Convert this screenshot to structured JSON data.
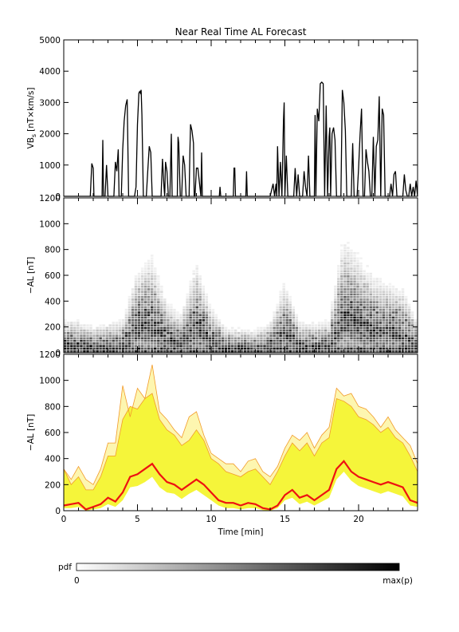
{
  "chart_data": [
    {
      "type": "line",
      "title": "Near Real Time AL Forecast",
      "ylabel_main": "VB",
      "ylabel_sub": "s",
      "ylabel_units": "[nT×km/s]",
      "ylim": [
        0,
        5000
      ],
      "xlim": [
        0,
        24
      ],
      "yticks": [
        "0",
        "1000",
        "2000",
        "3000",
        "4000",
        "5000"
      ],
      "x": [
        0,
        1.8,
        1.9,
        2.0,
        2.05,
        2.3,
        2.6,
        2.65,
        2.7,
        2.8,
        2.9,
        3.0,
        3.4,
        3.5,
        3.6,
        3.7,
        3.75,
        3.8,
        3.9,
        4.0,
        4.1,
        4.2,
        4.3,
        4.4,
        4.5,
        4.6,
        4.8,
        4.9,
        5.0,
        5.1,
        5.15,
        5.2,
        5.25,
        5.3,
        5.4,
        5.5,
        5.6,
        5.7,
        5.8,
        5.85,
        5.9,
        6.0,
        6.1,
        6.2,
        6.3,
        6.5,
        6.6,
        6.7,
        6.8,
        6.85,
        6.9,
        7.0,
        7.1,
        7.2,
        7.3,
        7.35,
        7.4,
        7.5,
        7.7,
        7.75,
        7.8,
        7.9,
        8.0,
        8.1,
        8.2,
        8.3,
        8.5,
        8.55,
        8.6,
        8.7,
        8.8,
        8.85,
        8.9,
        9.0,
        9.1,
        9.3,
        9.35,
        9.4,
        9.5,
        10.0,
        10.55,
        10.6,
        10.65,
        10.7,
        11.5,
        11.55,
        11.6,
        11.65,
        11.7,
        12.35,
        12.4,
        12.45,
        12.5,
        14.0,
        14.2,
        14.3,
        14.4,
        14.45,
        14.5,
        14.6,
        14.7,
        14.8,
        14.9,
        14.95,
        15.0,
        15.1,
        15.2,
        15.3,
        15.4,
        15.6,
        15.7,
        15.8,
        15.9,
        16.0,
        16.1,
        16.2,
        16.3,
        16.4,
        16.5,
        16.6,
        16.7,
        16.8,
        16.9,
        17.0,
        17.05,
        17.1,
        17.2,
        17.3,
        17.4,
        17.5,
        17.6,
        17.7,
        17.8,
        17.9,
        18.0,
        18.05,
        18.1,
        18.2,
        18.3,
        18.4,
        18.5,
        18.6,
        18.7,
        18.8,
        18.9,
        19.0,
        19.1,
        19.2,
        19.3,
        19.4,
        19.5,
        19.6,
        19.7,
        19.8,
        19.9,
        20.0,
        20.1,
        20.2,
        20.3,
        20.4,
        20.5,
        20.6,
        20.7,
        20.8,
        20.9,
        21.0,
        21.1,
        21.2,
        21.3,
        21.4,
        21.5,
        21.6,
        21.7,
        21.8,
        21.9,
        22.0,
        22.1,
        22.2,
        22.3,
        22.4,
        22.5,
        22.6,
        22.7,
        22.8,
        22.9,
        23.0,
        23.1,
        23.2,
        23.3,
        23.4,
        23.5,
        23.6,
        23.7,
        23.8,
        23.9,
        24.0
      ],
      "values": [
        0,
        0,
        1050,
        900,
        0,
        0,
        0,
        1800,
        0,
        0,
        1000,
        0,
        0,
        1100,
        800,
        1500,
        0,
        0,
        0,
        1500,
        2400,
        2900,
        3100,
        0,
        0,
        0,
        0,
        300,
        2300,
        3300,
        3350,
        3300,
        3400,
        2600,
        0,
        0,
        0,
        800,
        1600,
        1500,
        1400,
        0,
        0,
        0,
        0,
        0,
        0,
        1200,
        300,
        0,
        1100,
        800,
        0,
        0,
        2000,
        0,
        0,
        0,
        0,
        1900,
        1700,
        0,
        0,
        1300,
        1000,
        0,
        0,
        1300,
        2300,
        2100,
        1700,
        0,
        0,
        900,
        900,
        0,
        1400,
        0,
        0,
        0,
        0,
        300,
        0,
        0,
        0,
        900,
        900,
        0,
        0,
        0,
        800,
        0,
        0,
        0,
        400,
        0,
        400,
        0,
        1600,
        0,
        1100,
        0,
        2400,
        3000,
        0,
        1300,
        0,
        0,
        0,
        0,
        900,
        0,
        700,
        0,
        0,
        0,
        800,
        300,
        0,
        1300,
        0,
        0,
        0,
        0,
        2600,
        0,
        2800,
        2400,
        3600,
        3650,
        3600,
        0,
        2900,
        0,
        1900,
        2200,
        0,
        2000,
        2200,
        1800,
        0,
        0,
        0,
        0,
        3400,
        3000,
        2100,
        0,
        0,
        0,
        0,
        1700,
        0,
        0,
        0,
        900,
        2000,
        2800,
        0,
        0,
        1500,
        1100,
        800,
        0,
        0,
        1900,
        0,
        1600,
        1800,
        3200,
        0,
        2800,
        2600,
        0,
        0,
        0,
        0,
        400,
        0,
        700,
        800,
        0,
        0,
        0,
        0,
        0,
        700,
        200,
        0,
        0,
        400,
        0,
        300,
        0,
        500,
        0
      ]
    },
    {
      "type": "heatmap",
      "ylabel": "−AL [nT]",
      "ylim": [
        0,
        1200
      ],
      "xlim": [
        0,
        24
      ],
      "yticks": [
        "0",
        "200",
        "400",
        "600",
        "800",
        "1000",
        "1200"
      ],
      "description_of_shading": "pdf of -AL per time bin, gray scale 0 to max(p)",
      "density_centers_x": [
        0,
        1,
        2,
        3,
        4,
        5,
        6,
        7,
        8,
        9,
        10,
        11,
        12,
        13,
        14,
        15,
        16,
        17,
        18,
        19,
        20,
        21,
        22,
        23,
        24
      ],
      "density_centers_y": [
        60,
        60,
        40,
        50,
        60,
        220,
        260,
        120,
        80,
        240,
        100,
        40,
        30,
        30,
        50,
        180,
        60,
        50,
        60,
        320,
        260,
        200,
        180,
        160,
        60
      ]
    },
    {
      "type": "area",
      "ylabel": "−AL [nT]",
      "xlabel": "Time [min]",
      "ylim": [
        0,
        1200
      ],
      "xlim": [
        0,
        24
      ],
      "yticks": [
        "0",
        "200",
        "400",
        "600",
        "800",
        "1000",
        "1200"
      ],
      "xticks": [
        "0",
        "5",
        "10",
        "15",
        "20"
      ],
      "xtick_values": [
        0,
        5,
        10,
        15,
        20
      ],
      "x": [
        0,
        0.5,
        1,
        1.5,
        2,
        2.5,
        3,
        3.5,
        4,
        4.5,
        5,
        5.5,
        6,
        6.5,
        7,
        7.5,
        8,
        8.5,
        9,
        9.5,
        10,
        10.5,
        11,
        11.5,
        12,
        12.5,
        13,
        13.5,
        14,
        14.5,
        15,
        15.5,
        16,
        16.5,
        17,
        17.5,
        18,
        18.5,
        19,
        19.5,
        20,
        20.5,
        21,
        21.5,
        22,
        22.5,
        23,
        23.5,
        24
      ],
      "median": [
        40,
        50,
        60,
        10,
        30,
        50,
        100,
        70,
        140,
        260,
        280,
        320,
        360,
        280,
        220,
        200,
        160,
        200,
        240,
        200,
        140,
        80,
        60,
        60,
        40,
        60,
        50,
        20,
        10,
        40,
        120,
        160,
        100,
        120,
        80,
        120,
        160,
        320,
        380,
        300,
        260,
        240,
        220,
        200,
        220,
        200,
        180,
        80,
        60
      ],
      "lower": [
        20,
        20,
        30,
        0,
        10,
        20,
        50,
        30,
        80,
        180,
        190,
        220,
        260,
        180,
        140,
        130,
        90,
        130,
        160,
        120,
        80,
        40,
        20,
        20,
        10,
        20,
        20,
        5,
        0,
        20,
        80,
        100,
        50,
        70,
        40,
        70,
        100,
        240,
        300,
        230,
        190,
        170,
        150,
        130,
        150,
        130,
        110,
        40,
        30
      ],
      "upper": [
        320,
        200,
        260,
        160,
        160,
        260,
        420,
        420,
        700,
        800,
        780,
        860,
        900,
        700,
        620,
        580,
        500,
        540,
        620,
        540,
        400,
        360,
        300,
        280,
        260,
        300,
        320,
        260,
        200,
        300,
        420,
        520,
        460,
        520,
        420,
        520,
        560,
        860,
        840,
        800,
        720,
        700,
        660,
        600,
        640,
        560,
        520,
        420,
        300
      ],
      "max": [
        320,
        240,
        340,
        240,
        200,
        320,
        520,
        520,
        960,
        720,
        940,
        860,
        1120,
        760,
        700,
        620,
        560,
        720,
        760,
        580,
        440,
        400,
        360,
        360,
        300,
        380,
        400,
        300,
        260,
        340,
        480,
        580,
        540,
        600,
        480,
        580,
        640,
        940,
        880,
        900,
        800,
        780,
        720,
        640,
        720,
        620,
        560,
        500,
        360
      ],
      "colors": {
        "median": "#ee1111",
        "band": "#f5f53a",
        "outer_band": "#fdf6b0",
        "edge": "#f29a2a"
      }
    }
  ],
  "colorbar": {
    "label": "pdf",
    "min_label": "0",
    "max_label": "max(p)"
  }
}
